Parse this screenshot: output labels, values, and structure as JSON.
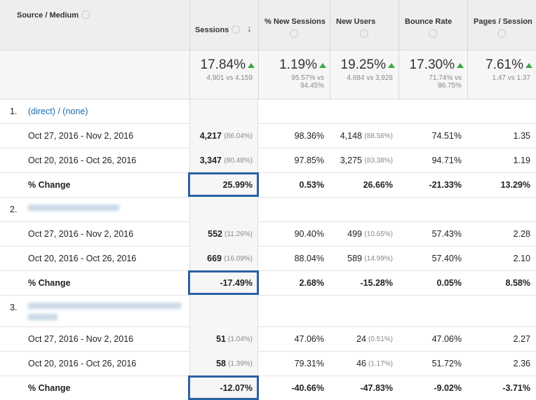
{
  "columns": [
    "Source / Medium",
    "Sessions",
    "% New Sessions",
    "New Users",
    "Bounce Rate",
    "Pages / Session"
  ],
  "totals": [
    {
      "value": "17.84%",
      "detail": "4,901 vs 4,159"
    },
    {
      "value": "1.19%",
      "detail": "95.57% vs 94.45%"
    },
    {
      "value": "19.25%",
      "detail": "4,684 vs 3,928"
    },
    {
      "value": "17.30%",
      "detail": "71.74% vs 86.75%"
    },
    {
      "value": "7.61%",
      "detail": "1.47 vs 1.37"
    }
  ],
  "groups": [
    {
      "index": "1.",
      "label": "(direct) / (none)",
      "rows": [
        {
          "label": "Oct 27, 2016 - Nov 2, 2016",
          "cells": [
            {
              "value": "4,217",
              "share": "(86.04%)"
            },
            {
              "value": "98.36%"
            },
            {
              "value": "4,148",
              "share": "(88.56%)"
            },
            {
              "value": "74.51%"
            },
            {
              "value": "1.35"
            }
          ]
        },
        {
          "label": "Oct 20, 2016 - Oct 26, 2016",
          "cells": [
            {
              "value": "3,347",
              "share": "(80.48%)"
            },
            {
              "value": "97.85%"
            },
            {
              "value": "3,275",
              "share": "(83.38%)"
            },
            {
              "value": "94.71%"
            },
            {
              "value": "1.19"
            }
          ]
        },
        {
          "label": "% Change",
          "cells": [
            {
              "value": "25.99%"
            },
            {
              "value": "0.53%"
            },
            {
              "value": "26.66%"
            },
            {
              "value": "-21.33%"
            },
            {
              "value": "13.29%"
            }
          ]
        }
      ]
    },
    {
      "index": "2.",
      "rows": [
        {
          "label": "Oct 27, 2016 - Nov 2, 2016",
          "cells": [
            {
              "value": "552",
              "share": "(11.26%)"
            },
            {
              "value": "90.40%"
            },
            {
              "value": "499",
              "share": "(10.65%)"
            },
            {
              "value": "57.43%"
            },
            {
              "value": "2.28"
            }
          ]
        },
        {
          "label": "Oct 20, 2016 - Oct 26, 2016",
          "cells": [
            {
              "value": "669",
              "share": "(16.09%)"
            },
            {
              "value": "88.04%"
            },
            {
              "value": "589",
              "share": "(14.99%)"
            },
            {
              "value": "57.40%"
            },
            {
              "value": "2.10"
            }
          ]
        },
        {
          "label": "% Change",
          "cells": [
            {
              "value": "-17.49%"
            },
            {
              "value": "2.68%"
            },
            {
              "value": "-15.28%"
            },
            {
              "value": "0.05%"
            },
            {
              "value": "8.58%"
            }
          ]
        }
      ]
    },
    {
      "index": "3.",
      "rows": [
        {
          "label": "Oct 27, 2016 - Nov 2, 2016",
          "cells": [
            {
              "value": "51",
              "share": "(1.04%)"
            },
            {
              "value": "47.06%"
            },
            {
              "value": "24",
              "share": "(0.51%)"
            },
            {
              "value": "47.06%"
            },
            {
              "value": "2.27"
            }
          ]
        },
        {
          "label": "Oct 20, 2016 - Oct 26, 2016",
          "cells": [
            {
              "value": "58",
              "share": "(1.39%)"
            },
            {
              "value": "79.31%"
            },
            {
              "value": "46",
              "share": "(1.17%)"
            },
            {
              "value": "51.72%"
            },
            {
              "value": "2.36"
            }
          ]
        },
        {
          "label": "% Change",
          "cells": [
            {
              "value": "-12.07%"
            },
            {
              "value": "-40.66%"
            },
            {
              "value": "-47.83%"
            },
            {
              "value": "-9.02%"
            },
            {
              "value": "-3.71%"
            }
          ]
        }
      ]
    }
  ]
}
